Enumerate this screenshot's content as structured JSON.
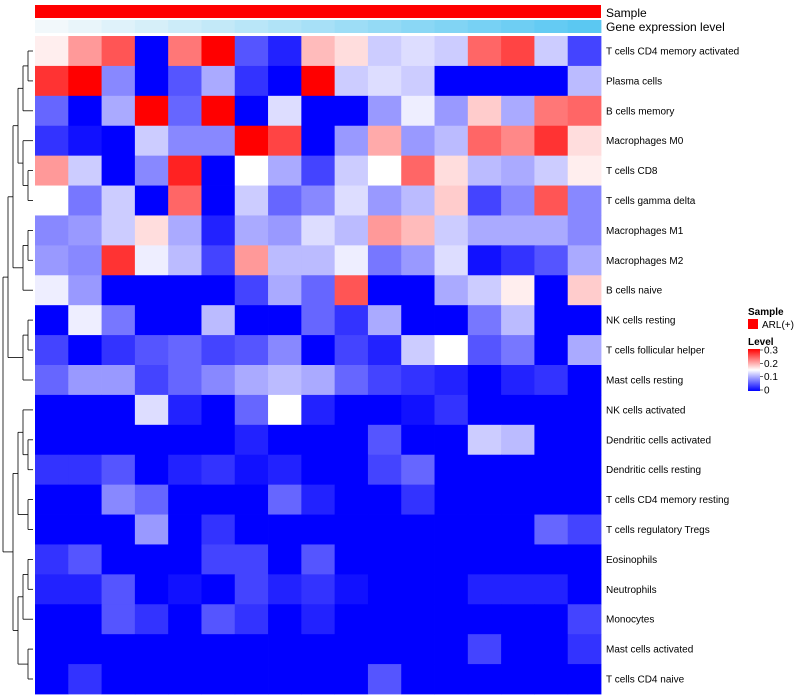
{
  "chart_data": {
    "type": "heatmap",
    "title": "",
    "annotation_tracks": [
      {
        "label": "Sample",
        "values": "ARL(+) for all columns",
        "color": "#ff0000"
      },
      {
        "label": "Gene expression level",
        "values": "increasing gradient, light to dark blue across columns",
        "color_low": "#f2f8fb",
        "color_high": "#5bc8f2"
      }
    ],
    "rows": [
      "T cells CD4 memory activated",
      "Plasma cells",
      "B cells memory",
      "Macrophages M0",
      "T cells CD8",
      "T cells gamma delta",
      "Macrophages M1",
      "Macrophages M2",
      "B cells naive",
      "NK cells resting",
      "T cells follicular helper",
      "Mast cells resting",
      "NK cells activated",
      "Dendritic cells activated",
      "Dendritic cells resting",
      "T cells CD4 memory resting",
      "T cells regulatory  Tregs",
      "Eosinophils",
      "Neutrophils",
      "Monocytes",
      "Mast cells activated",
      "T cells CD4 naive"
    ],
    "n_columns": 17,
    "values": [
      [
        0.16,
        0.21,
        0.25,
        0.0,
        0.23,
        0.3,
        0.05,
        0.02,
        0.19,
        0.17,
        0.12,
        0.13,
        0.12,
        0.24,
        0.26,
        0.12,
        0.04
      ],
      [
        0.27,
        0.3,
        0.08,
        0.0,
        0.05,
        0.1,
        0.03,
        0.0,
        0.3,
        0.12,
        0.13,
        0.12,
        0.0,
        0.0,
        0.0,
        0.0,
        0.11
      ],
      [
        0.06,
        0.0,
        0.1,
        0.3,
        0.06,
        0.3,
        0.0,
        0.13,
        0.0,
        0.0,
        0.09,
        0.14,
        0.09,
        0.18,
        0.1,
        0.23,
        0.24
      ],
      [
        0.03,
        0.01,
        0.0,
        0.12,
        0.08,
        0.08,
        0.3,
        0.26,
        0.0,
        0.09,
        0.2,
        0.09,
        0.11,
        0.24,
        0.22,
        0.27,
        0.17
      ],
      [
        0.21,
        0.12,
        0.0,
        0.08,
        0.28,
        0.0,
        0.15,
        0.1,
        0.04,
        0.12,
        0.15,
        0.24,
        0.17,
        0.11,
        0.1,
        0.12,
        0.16
      ],
      [
        0.15,
        0.07,
        0.12,
        0.0,
        0.24,
        0.0,
        0.12,
        0.06,
        0.08,
        0.13,
        0.09,
        0.11,
        0.18,
        0.04,
        0.08,
        0.25,
        0.08
      ],
      [
        0.08,
        0.09,
        0.12,
        0.17,
        0.1,
        0.02,
        0.1,
        0.09,
        0.13,
        0.11,
        0.21,
        0.19,
        0.12,
        0.1,
        0.1,
        0.1,
        0.08
      ],
      [
        0.09,
        0.08,
        0.27,
        0.14,
        0.11,
        0.04,
        0.21,
        0.11,
        0.11,
        0.14,
        0.07,
        0.09,
        0.13,
        0.01,
        0.03,
        0.05,
        0.1
      ],
      [
        0.14,
        0.09,
        0.0,
        0.0,
        0.0,
        0.0,
        0.04,
        0.1,
        0.06,
        0.25,
        0.0,
        0.0,
        0.1,
        0.12,
        0.16,
        0.0,
        0.18
      ],
      [
        0.0,
        0.14,
        0.07,
        0.0,
        0.0,
        0.11,
        0.0,
        0.0,
        0.06,
        0.03,
        0.1,
        0.0,
        0.0,
        0.07,
        0.11,
        0.0,
        0.0
      ],
      [
        0.04,
        0.0,
        0.03,
        0.05,
        0.06,
        0.04,
        0.05,
        0.08,
        0.0,
        0.04,
        0.02,
        0.12,
        0.15,
        0.05,
        0.07,
        0.0,
        0.1
      ],
      [
        0.06,
        0.09,
        0.09,
        0.04,
        0.06,
        0.08,
        0.1,
        0.11,
        0.1,
        0.06,
        0.04,
        0.03,
        0.02,
        0.0,
        0.02,
        0.03,
        0.0
      ],
      [
        0.0,
        0.0,
        0.0,
        0.13,
        0.02,
        0.0,
        0.06,
        0.15,
        0.02,
        0.0,
        0.0,
        0.01,
        0.03,
        0.0,
        0.0,
        0.0,
        0.0
      ],
      [
        0.0,
        0.0,
        0.0,
        0.0,
        0.0,
        0.0,
        0.02,
        0.0,
        0.0,
        0.0,
        0.05,
        0.0,
        0.0,
        0.12,
        0.11,
        0.0,
        0.0
      ],
      [
        0.03,
        0.03,
        0.05,
        0.0,
        0.02,
        0.03,
        0.01,
        0.02,
        0.0,
        0.0,
        0.04,
        0.06,
        0.0,
        0.0,
        0.0,
        0.0,
        0.0
      ],
      [
        0.0,
        0.0,
        0.08,
        0.06,
        0.0,
        0.0,
        0.0,
        0.06,
        0.02,
        0.0,
        0.0,
        0.03,
        0.0,
        0.0,
        0.0,
        0.0,
        0.0
      ],
      [
        0.0,
        0.0,
        0.0,
        0.09,
        0.0,
        0.03,
        0.0,
        0.0,
        0.0,
        0.0,
        0.0,
        0.0,
        0.0,
        0.0,
        0.0,
        0.06,
        0.04
      ],
      [
        0.03,
        0.05,
        0.0,
        0.0,
        0.0,
        0.04,
        0.04,
        0.0,
        0.05,
        0.0,
        0.0,
        0.0,
        0.0,
        0.0,
        0.0,
        0.0,
        0.0
      ],
      [
        0.02,
        0.02,
        0.05,
        0.0,
        0.01,
        0.0,
        0.04,
        0.02,
        0.03,
        0.01,
        0.0,
        0.0,
        0.0,
        0.02,
        0.02,
        0.02,
        0.0
      ],
      [
        0.0,
        0.0,
        0.05,
        0.03,
        0.0,
        0.05,
        0.03,
        0.0,
        0.02,
        0.0,
        0.0,
        0.0,
        0.0,
        0.0,
        0.0,
        0.0,
        0.04
      ],
      [
        0.0,
        0.0,
        0.0,
        0.0,
        0.0,
        0.0,
        0.0,
        0.0,
        0.0,
        0.0,
        0.0,
        0.0,
        0.0,
        0.04,
        0.0,
        0.0,
        0.03
      ],
      [
        0.0,
        0.03,
        0.0,
        0.0,
        0.0,
        0.0,
        0.0,
        0.0,
        0.0,
        0.0,
        0.05,
        0.0,
        0.0,
        0.0,
        0.0,
        0.0,
        0.0
      ]
    ],
    "color_scale": {
      "min": 0,
      "mid": 0.15,
      "max": 0.3,
      "low_color": "#0000ff",
      "mid_color": "#ffffff",
      "high_color": "#ff0000"
    },
    "legend": {
      "sample_title": "Sample",
      "sample_entry": "ARL(+)",
      "level_title": "Level",
      "ticks": [
        "0.3",
        "0.2",
        "0.1",
        "0"
      ]
    }
  }
}
